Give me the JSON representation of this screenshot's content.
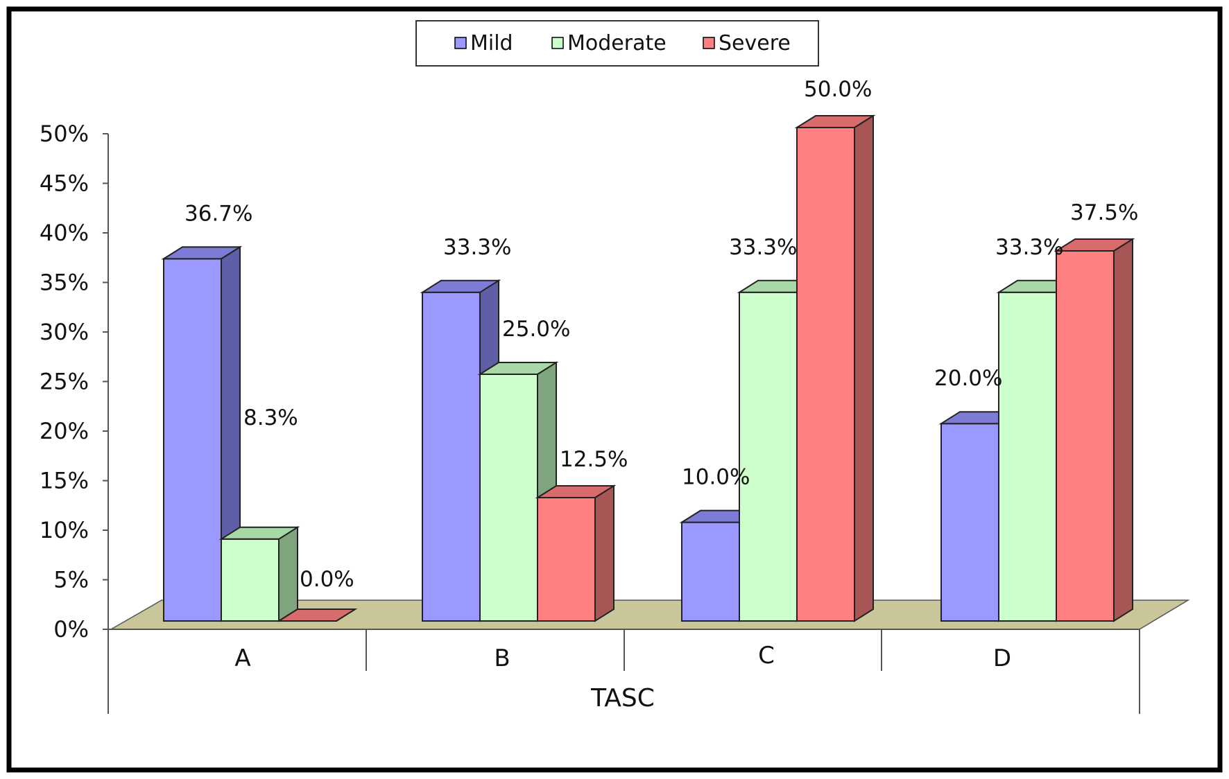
{
  "chart_data": {
    "type": "bar",
    "style": "3d-clustered",
    "title": "",
    "xlabel": "TASC",
    "ylabel": "",
    "categories": [
      "A",
      "B",
      "C",
      "D"
    ],
    "series": [
      {
        "name": "Mild",
        "values": [
          36.7,
          33.3,
          10.0,
          20.0
        ],
        "labels": [
          "36.7%",
          "33.3%",
          "10.0%",
          "20.0%"
        ]
      },
      {
        "name": "Moderate",
        "values": [
          8.3,
          25.0,
          33.3,
          33.3
        ],
        "labels": [
          "8.3%",
          "25.0%",
          "33.3%",
          "33.3%"
        ]
      },
      {
        "name": "Severe",
        "values": [
          0.0,
          12.5,
          50.0,
          37.5
        ],
        "labels": [
          "0.0%",
          "12.5%",
          "50.0%",
          "37.5%"
        ]
      }
    ],
    "yticks": [
      "0%",
      "5%",
      "10%",
      "15%",
      "20%",
      "25%",
      "30%",
      "35%",
      "40%",
      "45%",
      "50%"
    ],
    "ylim": [
      0,
      50
    ],
    "legend": "top-center",
    "grid": false
  },
  "colors": {
    "Mild": {
      "front": "#9999ff",
      "side": "#5f5fa8",
      "top": "#7c7cd6"
    },
    "Moderate": {
      "front": "#ccffcc",
      "side": "#7fa57f",
      "top": "#a8d8a8"
    },
    "Severe": {
      "front": "#ff8080",
      "side": "#a85555",
      "top": "#d86b6b"
    },
    "floor": "#c9c79a",
    "frame": "#000000"
  }
}
